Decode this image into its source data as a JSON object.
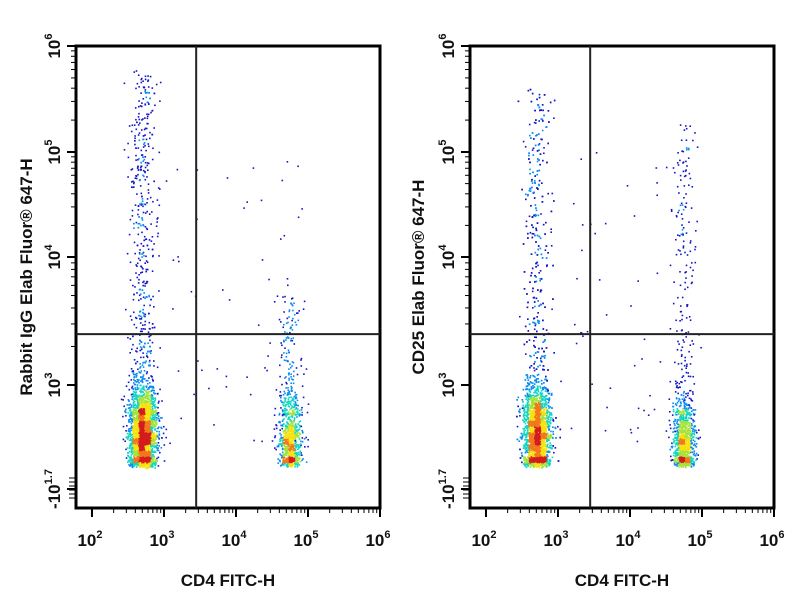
{
  "chart_data": [
    {
      "type": "scatter",
      "subtype": "flow-cytometry-density-dot-plot",
      "title": "",
      "xlabel": "CD4 FITC-H",
      "ylabel": "Rabbit IgG Elab Fluor® 647-H",
      "x_scale": "log",
      "y_scale": "biexponential",
      "x_ticks": [
        {
          "base": "10",
          "exp": "2",
          "value": 100
        },
        {
          "base": "10",
          "exp": "3",
          "value": 1000
        },
        {
          "base": "10",
          "exp": "4",
          "value": 10000
        },
        {
          "base": "10",
          "exp": "5",
          "value": 100000
        },
        {
          "base": "10",
          "exp": "6",
          "value": 1000000
        }
      ],
      "y_ticks": [
        {
          "base": "-10",
          "exp": "1.7",
          "value": -50
        },
        {
          "base": "10",
          "exp": "3",
          "value": 1000
        },
        {
          "base": "10",
          "exp": "4",
          "value": 10000
        },
        {
          "base": "10",
          "exp": "5",
          "value": 100000
        },
        {
          "base": "10",
          "exp": "6",
          "value": 1000000
        }
      ],
      "xlim": [
        60,
        1000000
      ],
      "ylim": [
        -100,
        1000000
      ],
      "quadrant_gate": {
        "x": 2800,
        "y": 2500
      },
      "populations": [
        {
          "name": "CD4-",
          "x_center": 500,
          "y_center": 200,
          "x_spread_log": 0.09,
          "y_spread_log": 0.3,
          "tail_to": 600000,
          "events": 3600
        },
        {
          "name": "CD4+",
          "x_center": 55000,
          "y_center": 150,
          "x_spread_log": 0.07,
          "y_spread_log": 0.25,
          "tail_to": 5000,
          "events": 1000
        }
      ],
      "density_colors": [
        "#1515c8",
        "#0a8cf0",
        "#13d6c2",
        "#a5e33a",
        "#f6e20f",
        "#f3771c",
        "#d41c1c"
      ]
    },
    {
      "type": "scatter",
      "subtype": "flow-cytometry-density-dot-plot",
      "title": "",
      "xlabel": "CD4 FITC-H",
      "ylabel": "CD25 Elab Fluor® 647-H",
      "x_scale": "log",
      "y_scale": "biexponential",
      "x_ticks": [
        {
          "base": "10",
          "exp": "2",
          "value": 100
        },
        {
          "base": "10",
          "exp": "3",
          "value": 1000
        },
        {
          "base": "10",
          "exp": "4",
          "value": 10000
        },
        {
          "base": "10",
          "exp": "5",
          "value": 100000
        },
        {
          "base": "10",
          "exp": "6",
          "value": 1000000
        }
      ],
      "y_ticks": [
        {
          "base": "-10",
          "exp": "1.7",
          "value": -50
        },
        {
          "base": "10",
          "exp": "3",
          "value": 1000
        },
        {
          "base": "10",
          "exp": "4",
          "value": 10000
        },
        {
          "base": "10",
          "exp": "5",
          "value": 100000
        },
        {
          "base": "10",
          "exp": "6",
          "value": 1000000
        }
      ],
      "xlim": [
        60,
        1000000
      ],
      "ylim": [
        -100,
        1000000
      ],
      "quadrant_gate": {
        "x": 2800,
        "y": 2500
      },
      "populations": [
        {
          "name": "CD4-",
          "x_center": 500,
          "y_center": 200,
          "x_spread_log": 0.09,
          "y_spread_log": 0.3,
          "tail_to": 400000,
          "events": 3600
        },
        {
          "name": "CD4+",
          "x_center": 55000,
          "y_center": 150,
          "x_spread_log": 0.07,
          "y_spread_log": 0.25,
          "tail_to": 200000,
          "events": 1200
        }
      ],
      "density_colors": [
        "#1515c8",
        "#0a8cf0",
        "#13d6c2",
        "#a5e33a",
        "#f6e20f",
        "#f3771c",
        "#d41c1c"
      ]
    }
  ]
}
